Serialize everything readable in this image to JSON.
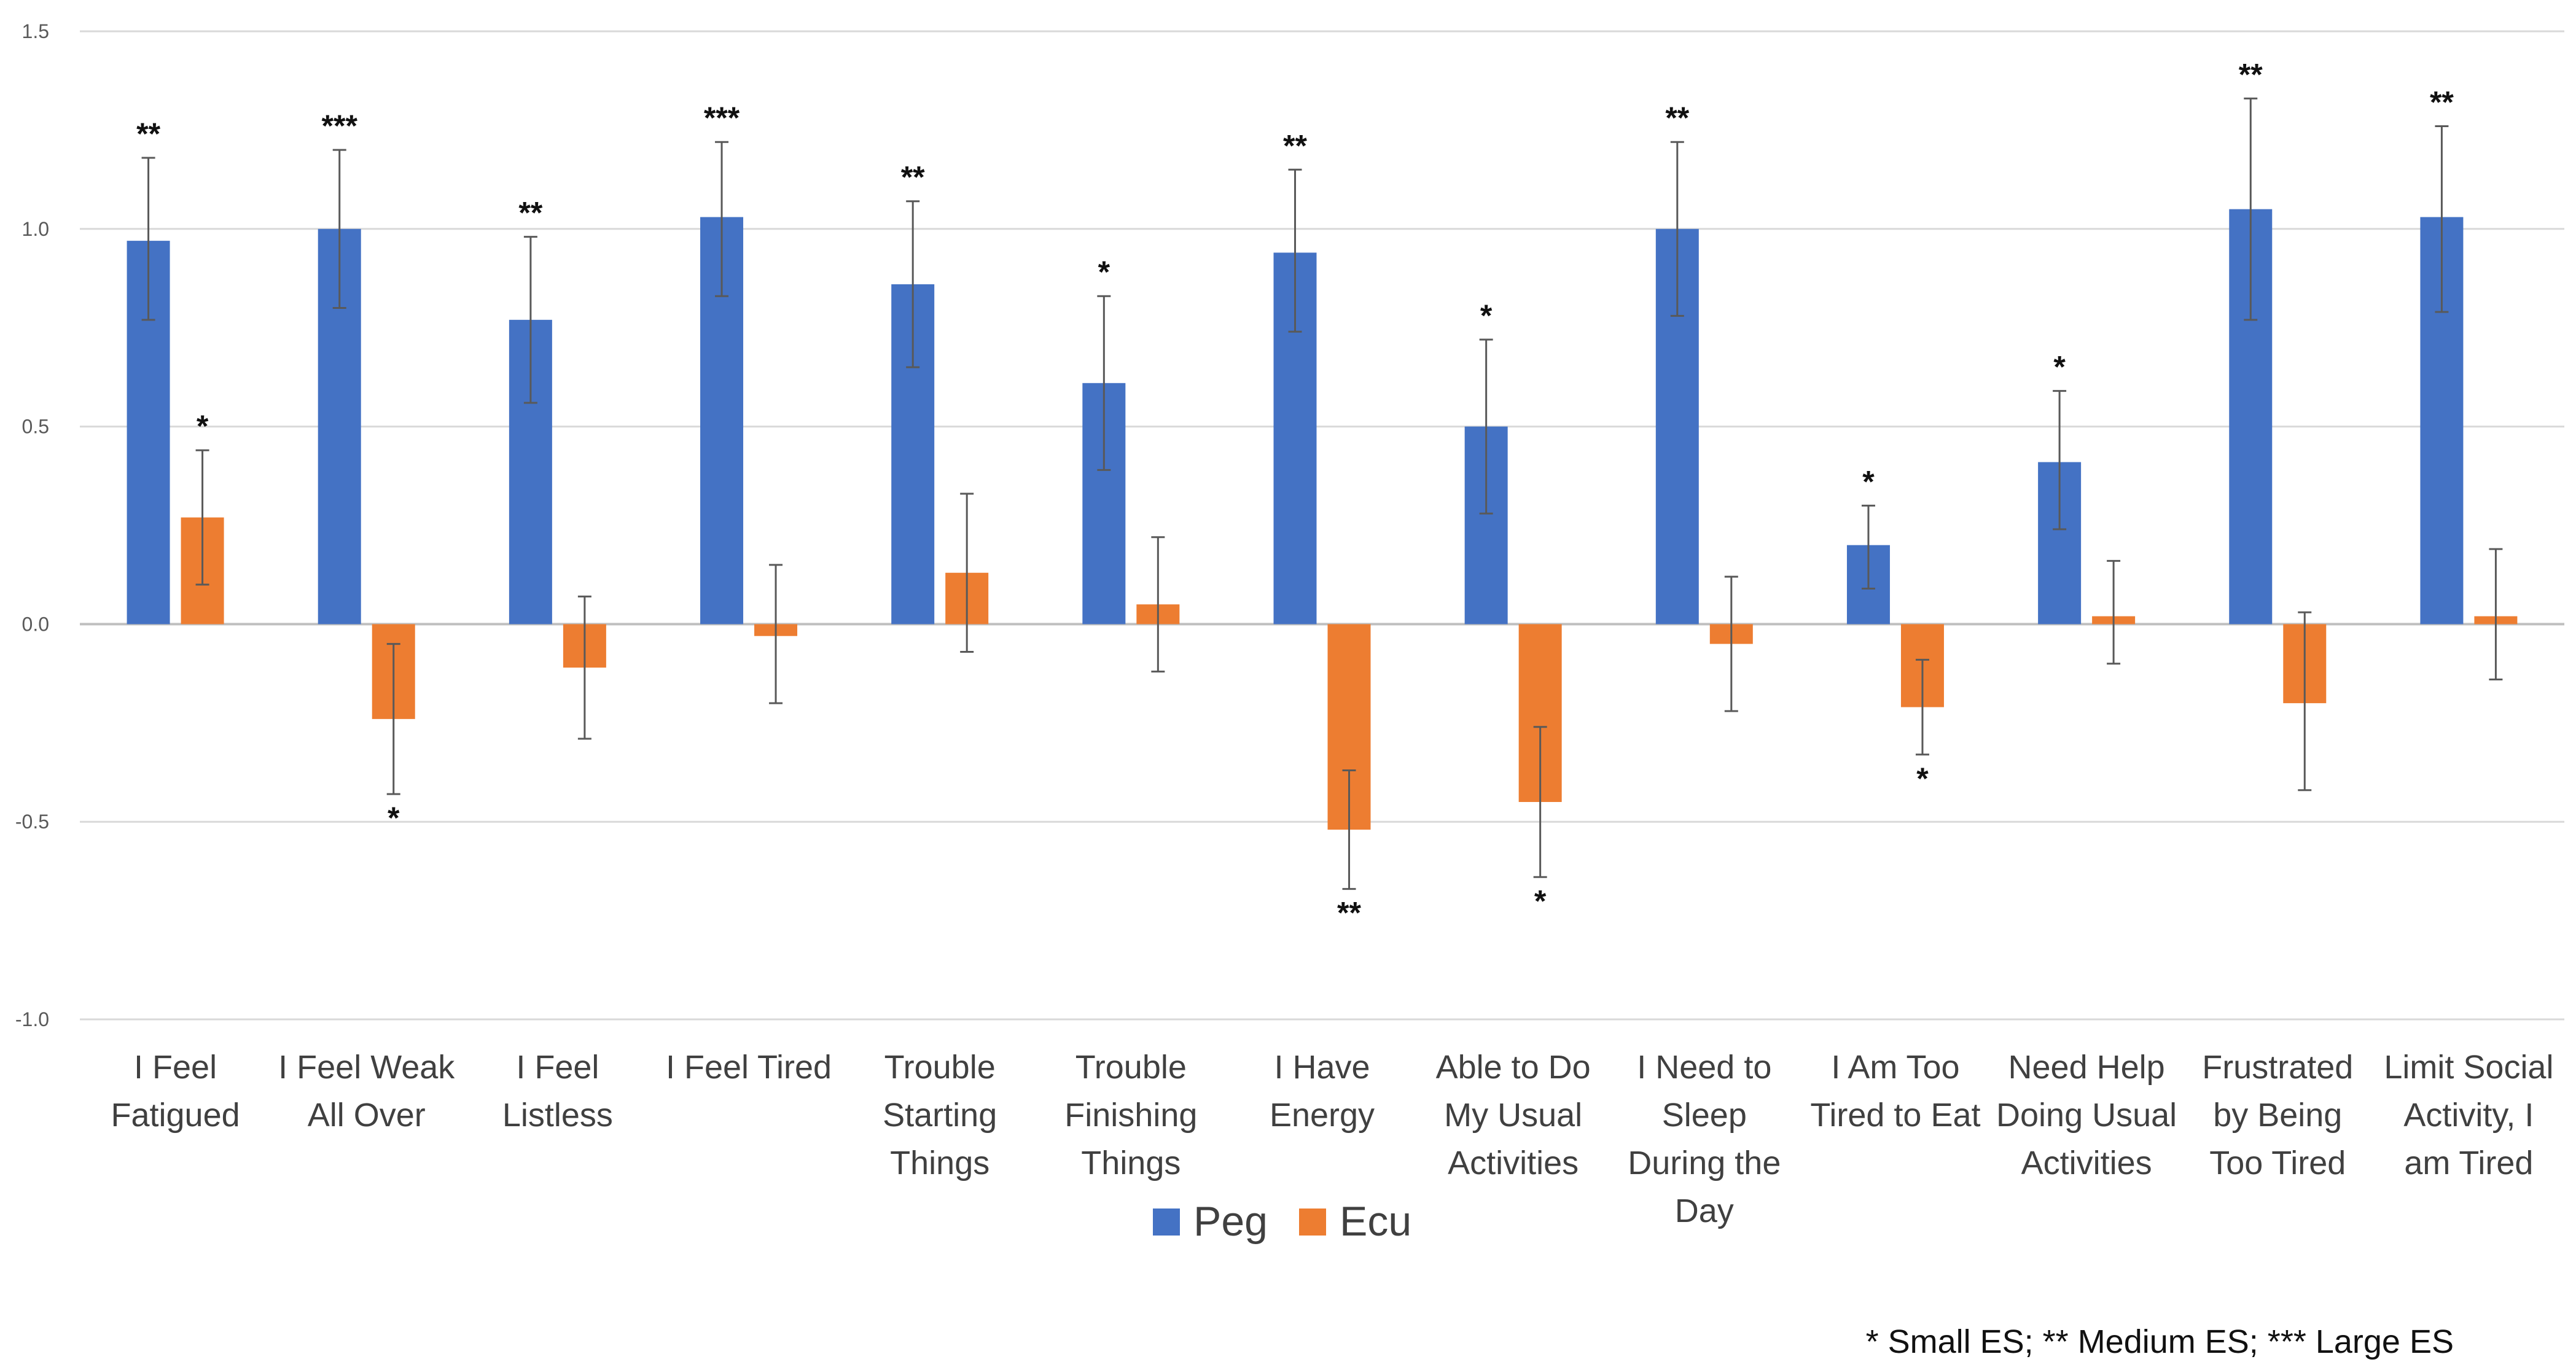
{
  "chart_data": {
    "type": "bar",
    "categories": [
      [
        "I Feel",
        "Fatigued"
      ],
      [
        "I Feel Weak",
        "All Over"
      ],
      [
        "I Feel",
        "Listless"
      ],
      [
        "I Feel Tired"
      ],
      [
        "Trouble",
        "Starting",
        "Things"
      ],
      [
        "Trouble",
        "Finishing",
        "Things"
      ],
      [
        "I Have",
        "Energy"
      ],
      [
        "Able to Do",
        "My Usual",
        "Activities"
      ],
      [
        "I Need to",
        "Sleep",
        "During the",
        "Day"
      ],
      [
        "I Am Too",
        "Tired to Eat"
      ],
      [
        "Need Help",
        "Doing Usual",
        "Activities"
      ],
      [
        "Frustrated",
        "by Being",
        "Too Tired"
      ],
      [
        "Limit Social",
        "Activity, I",
        "am Tired"
      ]
    ],
    "series": [
      {
        "name": "Peg",
        "color": "#4472C4",
        "values": [
          0.97,
          1.0,
          0.77,
          1.03,
          0.86,
          0.61,
          0.94,
          0.5,
          1.0,
          0.2,
          0.41,
          1.05,
          1.03
        ],
        "error_low": [
          0.77,
          0.8,
          0.56,
          0.83,
          0.65,
          0.39,
          0.74,
          0.28,
          0.78,
          0.09,
          0.24,
          0.77,
          0.79
        ],
        "error_high": [
          1.18,
          1.2,
          0.98,
          1.22,
          1.07,
          0.83,
          1.15,
          0.72,
          1.22,
          0.3,
          0.59,
          1.33,
          1.26
        ],
        "significance": [
          "**",
          "***",
          "**",
          "***",
          "**",
          "*",
          "**",
          "*",
          "**",
          "*",
          "*",
          "**",
          "**"
        ]
      },
      {
        "name": "Ecu",
        "color": "#ED7D31",
        "values": [
          0.27,
          -0.24,
          -0.11,
          -0.03,
          0.13,
          0.05,
          -0.52,
          -0.45,
          -0.05,
          -0.21,
          0.02,
          -0.2,
          0.02
        ],
        "error_low": [
          0.1,
          -0.43,
          -0.29,
          -0.2,
          -0.07,
          -0.12,
          -0.67,
          -0.64,
          -0.22,
          -0.33,
          -0.1,
          -0.42,
          -0.14
        ],
        "error_high": [
          0.44,
          -0.05,
          0.07,
          0.15,
          0.33,
          0.22,
          -0.37,
          -0.26,
          0.12,
          -0.09,
          0.16,
          0.03,
          0.19
        ],
        "significance": [
          "*",
          "*",
          "",
          "",
          "",
          "",
          "**",
          "*",
          "",
          "*",
          "",
          "",
          ""
        ]
      }
    ],
    "yticks": [
      "1.5",
      "1.0",
      "0.5",
      "0.0",
      "-0.5",
      "-1.0"
    ],
    "ylim": [
      -1.0,
      1.5
    ],
    "title": "",
    "xlabel": "",
    "ylabel": "",
    "grid": true,
    "legend": "bottom-center"
  },
  "footnote": "* Small ES; ** Medium ES; *** Large ES",
  "colors": {
    "grid": "#D9D9D9",
    "axis": "#BFBFBF",
    "errorbar": "#595959"
  }
}
